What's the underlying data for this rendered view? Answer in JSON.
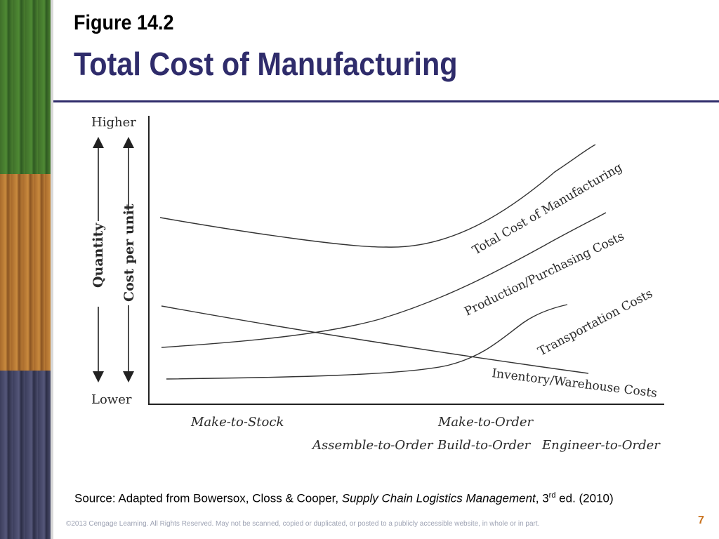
{
  "header": {
    "figure_label": "Figure 14.2",
    "title": "Total Cost of Manufacturing"
  },
  "diagram": {
    "y_top": "Higher",
    "y_bottom": "Lower",
    "quantity_label": "Quantity",
    "cost_label": "Cost per unit",
    "curves": {
      "total": "Total Cost of Manufacturing",
      "production": "Production/Purchasing Costs",
      "transportation": "Transportation Costs",
      "inventory": "Inventory/Warehouse Costs"
    },
    "strategies": {
      "make_to_stock": "Make-to-Stock",
      "make_to_order": "Make-to-Order",
      "assemble_to_order": "Assemble-to-Order",
      "build_to_order": "Build-to-Order",
      "engineer_to_order": "Engineer-to-Order"
    }
  },
  "footer": {
    "source_prefix": "Source: Adapted from Bowersox, Closs & Cooper, ",
    "source_book": "Supply Chain Logistics Management",
    "source_edition": ", 3",
    "source_sup": "rd",
    "source_suffix": " ed. (2010)",
    "copyright": "©2013 Cengage Learning. All Rights Reserved. May not be scanned, copied or duplicated, or posted to a publicly accessible website, in whole or in part.",
    "page_number": "7",
    "accent_color": "#c9731f"
  },
  "colors": {
    "title": "#2f2c6b"
  }
}
